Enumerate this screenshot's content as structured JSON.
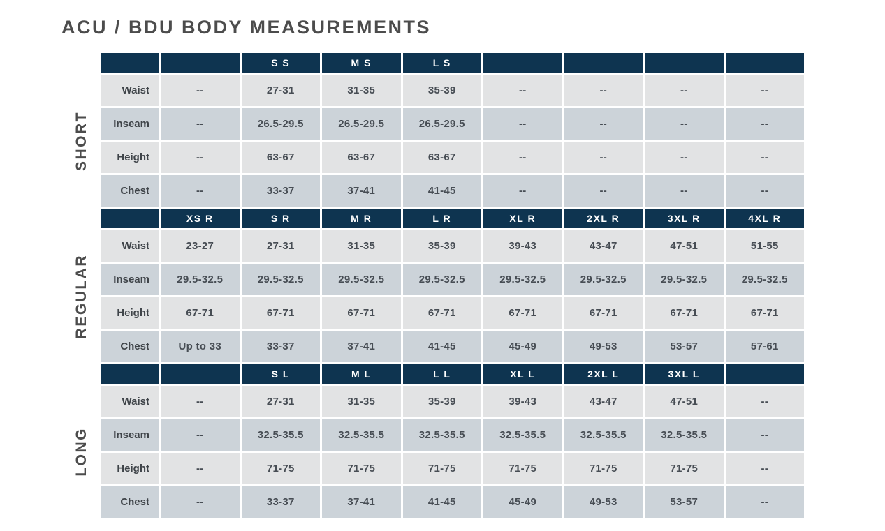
{
  "title": "ACU / BDU BODY MEASUREMENTS",
  "colors": {
    "header_bg": "#0e3450",
    "header_text": "#ffffff",
    "row_light_bg": "#e2e3e4",
    "row_dark_bg": "#ccd3d9",
    "title_text": "#4c4c4c",
    "cell_text": "#474d54"
  },
  "empty_value": "--",
  "chart_data": {
    "type": "table",
    "title": "ACU / BDU BODY MEASUREMENTS",
    "measurement_labels": [
      "Waist",
      "Inseam",
      "Height",
      "Chest"
    ],
    "sections": [
      {
        "name": "SHORT",
        "size_headers": [
          "",
          "S S",
          "M S",
          "L S",
          "",
          "",
          "",
          ""
        ],
        "rows": [
          {
            "label": "Waist",
            "values": [
              "--",
              "27-31",
              "31-35",
              "35-39",
              "--",
              "--",
              "--",
              "--"
            ]
          },
          {
            "label": "Inseam",
            "values": [
              "--",
              "26.5-29.5",
              "26.5-29.5",
              "26.5-29.5",
              "--",
              "--",
              "--",
              "--"
            ]
          },
          {
            "label": "Height",
            "values": [
              "--",
              "63-67",
              "63-67",
              "63-67",
              "--",
              "--",
              "--",
              "--"
            ]
          },
          {
            "label": "Chest",
            "values": [
              "--",
              "33-37",
              "37-41",
              "41-45",
              "--",
              "--",
              "--",
              "--"
            ]
          }
        ]
      },
      {
        "name": "REGULAR",
        "size_headers": [
          "XS R",
          "S R",
          "M R",
          "L R",
          "XL R",
          "2XL R",
          "3XL R",
          "4XL R"
        ],
        "rows": [
          {
            "label": "Waist",
            "values": [
              "23-27",
              "27-31",
              "31-35",
              "35-39",
              "39-43",
              "43-47",
              "47-51",
              "51-55"
            ]
          },
          {
            "label": "Inseam",
            "values": [
              "29.5-32.5",
              "29.5-32.5",
              "29.5-32.5",
              "29.5-32.5",
              "29.5-32.5",
              "29.5-32.5",
              "29.5-32.5",
              "29.5-32.5"
            ]
          },
          {
            "label": "Height",
            "values": [
              "67-71",
              "67-71",
              "67-71",
              "67-71",
              "67-71",
              "67-71",
              "67-71",
              "67-71"
            ]
          },
          {
            "label": "Chest",
            "values": [
              "Up to 33",
              "33-37",
              "37-41",
              "41-45",
              "45-49",
              "49-53",
              "53-57",
              "57-61"
            ]
          }
        ]
      },
      {
        "name": "LONG",
        "size_headers": [
          "",
          "S L",
          "M L",
          "L L",
          "XL L",
          "2XL L",
          "3XL L",
          ""
        ],
        "rows": [
          {
            "label": "Waist",
            "values": [
              "--",
              "27-31",
              "31-35",
              "35-39",
              "39-43",
              "43-47",
              "47-51",
              "--"
            ]
          },
          {
            "label": "Inseam",
            "values": [
              "--",
              "32.5-35.5",
              "32.5-35.5",
              "32.5-35.5",
              "32.5-35.5",
              "32.5-35.5",
              "32.5-35.5",
              "--"
            ]
          },
          {
            "label": "Height",
            "values": [
              "--",
              "71-75",
              "71-75",
              "71-75",
              "71-75",
              "71-75",
              "71-75",
              "--"
            ]
          },
          {
            "label": "Chest",
            "values": [
              "--",
              "33-37",
              "37-41",
              "41-45",
              "45-49",
              "49-53",
              "53-57",
              "--"
            ]
          }
        ]
      }
    ]
  }
}
